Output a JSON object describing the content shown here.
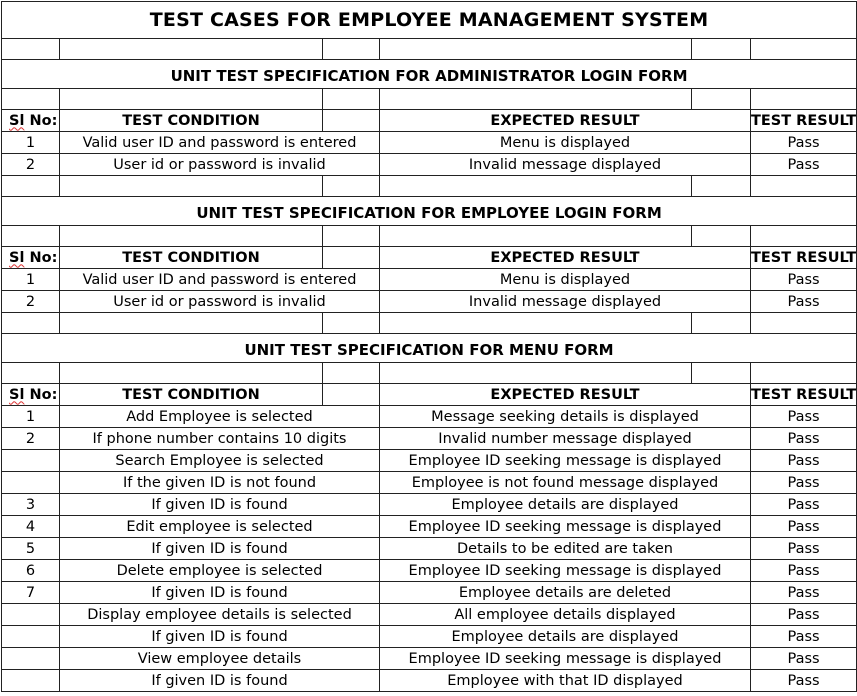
{
  "title": "TEST CASES FOR EMPLOYEE MANAGEMENT SYSTEM",
  "header": {
    "sl_no_prefix": "Sl",
    "sl_no_suffix": " No:",
    "condition": "TEST CONDITION",
    "expected": "EXPECTED RESULT",
    "result": "TEST RESULT"
  },
  "sections": [
    {
      "title": "UNIT TEST SPECIFICATION FOR ADMINISTRATOR LOGIN FORM",
      "rows": [
        {
          "sl": "1",
          "condition": "Valid user ID and password is entered",
          "expected": "Menu is displayed",
          "result": "Pass"
        },
        {
          "sl": "2",
          "condition": "User id or password is invalid",
          "expected": "Invalid message displayed",
          "result": "Pass"
        }
      ]
    },
    {
      "title": "UNIT TEST SPECIFICATION FOR EMPLOYEE LOGIN FORM",
      "rows": [
        {
          "sl": "1",
          "condition": "Valid user ID and password is entered",
          "expected": "Menu is displayed",
          "result": "Pass"
        },
        {
          "sl": "2",
          "condition": "User id or password is invalid",
          "expected": "Invalid message displayed",
          "result": "Pass"
        }
      ]
    },
    {
      "title": "UNIT TEST SPECIFICATION FOR MENU FORM",
      "rows": [
        {
          "sl": "1",
          "condition": "Add  Employee is selected",
          "expected": "Message seeking details is displayed",
          "result": "Pass"
        },
        {
          "sl": "2",
          "condition": "If phone number contains 10 digits",
          "expected": "Invalid number message displayed",
          "result": "Pass"
        },
        {
          "sl": "",
          "condition": "Search Employee is selected",
          "expected": "Employee ID seeking message is displayed",
          "result": "Pass"
        },
        {
          "sl": "",
          "condition": "If the given ID is not found",
          "expected": "Employee is not found message displayed",
          "result": "Pass"
        },
        {
          "sl": "3",
          "condition": "If given ID is found",
          "expected": "Employee details are displayed",
          "result": "Pass"
        },
        {
          "sl": "4",
          "condition": "Edit employee is selected",
          "expected": "Employee ID seeking message is displayed",
          "result": "Pass"
        },
        {
          "sl": "5",
          "condition": "If given ID is found",
          "expected": "Details to be edited are taken",
          "result": "Pass"
        },
        {
          "sl": "6",
          "condition": "Delete employee is selected",
          "expected": "Employee ID seeking message is displayed",
          "result": "Pass"
        },
        {
          "sl": "7",
          "condition": "If given ID is found",
          "expected": "Employee details are deleted",
          "result": "Pass"
        },
        {
          "sl": "",
          "condition": "Display employee details is selected",
          "expected": "All employee details displayed",
          "result": "Pass"
        },
        {
          "sl": "",
          "condition": "If given ID is found",
          "expected": "Employee details are displayed",
          "result": "Pass"
        },
        {
          "sl": "",
          "condition": "View employee details",
          "expected": "Employee ID seeking message is displayed",
          "result": "Pass"
        },
        {
          "sl": "",
          "condition": "If given ID is found",
          "expected": "Employee with that ID displayed",
          "result": "Pass"
        }
      ]
    }
  ]
}
